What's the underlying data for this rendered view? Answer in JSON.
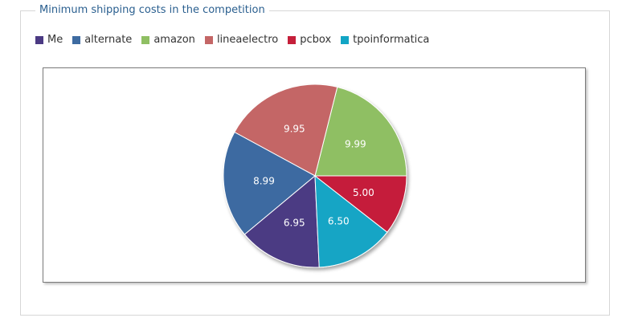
{
  "panel": {
    "title": "Minimum shipping costs in the competition"
  },
  "chart_data": {
    "type": "pie",
    "title": "Minimum shipping costs in the competition",
    "legend_placement": "top-left",
    "series": [
      {
        "name": "Me",
        "value": 6.95,
        "label": "6.95",
        "color": "#4b3a83"
      },
      {
        "name": "alternate",
        "value": 8.99,
        "label": "8.99",
        "color": "#3e6ba1"
      },
      {
        "name": "amazon",
        "value": 9.99,
        "label": "9.99",
        "color": "#8fbf63"
      },
      {
        "name": "lineaelectro",
        "value": 9.95,
        "label": "9.95",
        "color": "#c46666"
      },
      {
        "name": "pcbox",
        "value": 5.0,
        "label": "5.00",
        "color": "#c51f3a"
      },
      {
        "name": "tpoinformatica",
        "value": 6.5,
        "label": "6.50",
        "color": "#12a5c5"
      }
    ]
  }
}
